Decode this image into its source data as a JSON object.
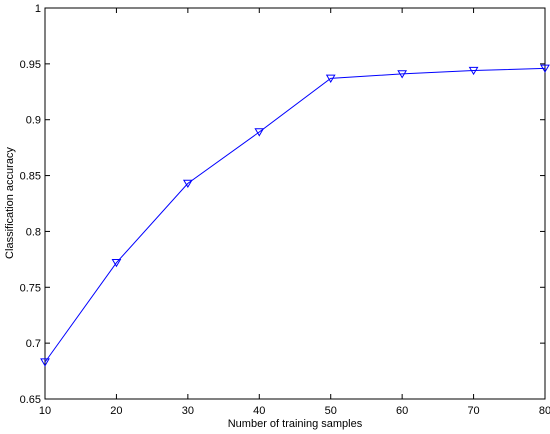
{
  "chart_data": {
    "type": "line",
    "title": "",
    "xlabel": "Number of training samples",
    "ylabel": "Classification accuracy",
    "x": [
      10,
      20,
      30,
      40,
      50,
      60,
      70,
      80
    ],
    "series": [
      {
        "values": [
          0.683,
          0.772,
          0.843,
          0.889,
          0.937,
          0.941,
          0.944,
          0.946
        ],
        "color": "#0000ff",
        "marker": "triangle-down"
      }
    ],
    "xlim": [
      10,
      80
    ],
    "ylim": [
      0.65,
      1.0
    ],
    "xticks": [
      "10",
      "20",
      "30",
      "40",
      "50",
      "60",
      "70",
      "80"
    ],
    "yticks": [
      "0.65",
      "0.7",
      "0.75",
      "0.8",
      "0.85",
      "0.9",
      "0.95",
      "1"
    ],
    "grid": false,
    "legend": "none"
  }
}
